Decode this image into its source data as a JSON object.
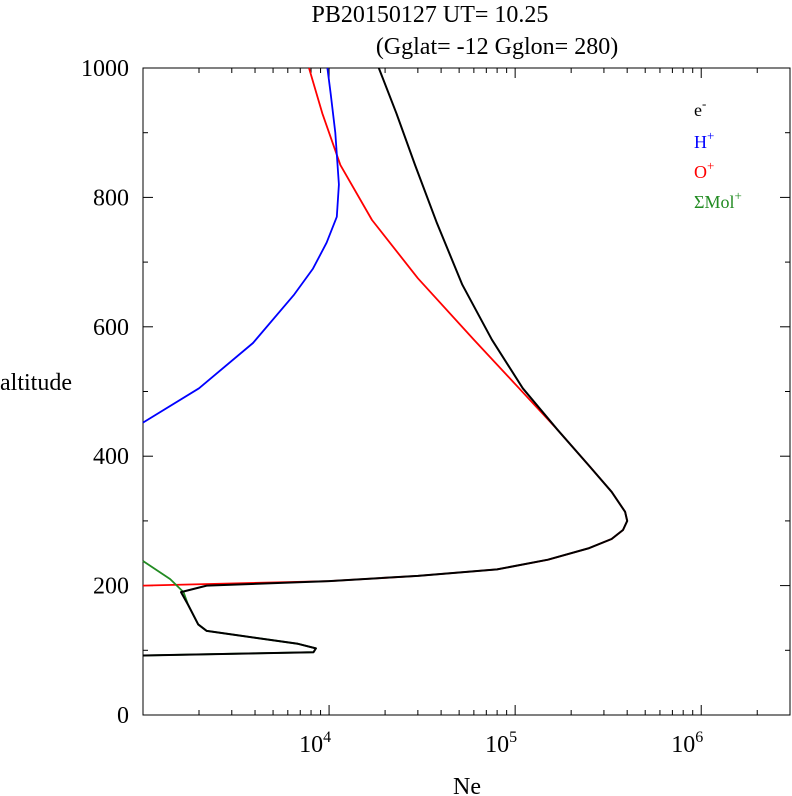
{
  "chart_data": {
    "type": "line",
    "title_line1": "PB20150127   UT=  10.25",
    "title_line2": "(Gglat= -12   Gglon=  280)",
    "xlabel": "Ne",
    "ylabel": "altitude",
    "x_scale": "log",
    "xlim": [
      1000,
      3000000
    ],
    "ylim": [
      0,
      1000
    ],
    "y_ticks": [
      0,
      200,
      400,
      600,
      800,
      1000
    ],
    "y_tick_labels": [
      "0",
      "200",
      "400",
      "600",
      "800",
      "1000"
    ],
    "x_ticks": [
      {
        "base": "10",
        "exp": "4",
        "value": 10000
      },
      {
        "base": "10",
        "exp": "5",
        "value": 100000
      },
      {
        "base": "10",
        "exp": "6",
        "value": 1000000
      }
    ],
    "grid": false,
    "legend_position": "top-right",
    "series": [
      {
        "name": "e",
        "name_sup": "-",
        "color": "#000000",
        "points": [
          [
            1000,
            92
          ],
          [
            8250,
            97
          ],
          [
            8500,
            103
          ],
          [
            6800,
            110
          ],
          [
            2200,
            130
          ],
          [
            1980,
            140
          ],
          [
            1750,
            170
          ],
          [
            1600,
            190
          ],
          [
            2200,
            200
          ],
          [
            10000,
            207
          ],
          [
            30000,
            215
          ],
          [
            80000,
            225
          ],
          [
            150000,
            240
          ],
          [
            250000,
            258
          ],
          [
            330000,
            272
          ],
          [
            380000,
            286
          ],
          [
            400000,
            300
          ],
          [
            390000,
            314
          ],
          [
            330000,
            345
          ],
          [
            250000,
            385
          ],
          [
            170000,
            440
          ],
          [
            110000,
            505
          ],
          [
            75000,
            580
          ],
          [
            52000,
            665
          ],
          [
            38000,
            760
          ],
          [
            29000,
            850
          ],
          [
            23000,
            930
          ],
          [
            18500,
            1000
          ]
        ]
      },
      {
        "name": "H",
        "name_sup": "+",
        "color": "#0000ff",
        "points": [
          [
            1000,
            452
          ],
          [
            2000,
            505
          ],
          [
            3900,
            575
          ],
          [
            6500,
            650
          ],
          [
            8200,
            690
          ],
          [
            9700,
            730
          ],
          [
            11000,
            770
          ],
          [
            11300,
            820
          ],
          [
            10800,
            900
          ],
          [
            10200,
            960
          ],
          [
            9800,
            1000
          ]
        ]
      },
      {
        "name": "O",
        "name_sup": "+",
        "color": "#ff0000",
        "points": [
          [
            1000,
            200
          ],
          [
            10000,
            207
          ],
          [
            30000,
            215
          ],
          [
            80000,
            225
          ],
          [
            150000,
            240
          ],
          [
            250000,
            258
          ],
          [
            330000,
            272
          ],
          [
            380000,
            286
          ],
          [
            400000,
            300
          ],
          [
            390000,
            314
          ],
          [
            330000,
            345
          ],
          [
            250000,
            385
          ],
          [
            170000,
            440
          ],
          [
            105000,
            505
          ],
          [
            60000,
            580
          ],
          [
            30000,
            675
          ],
          [
            17000,
            765
          ],
          [
            11500,
            850
          ],
          [
            9200,
            930
          ],
          [
            7800,
            1000
          ]
        ]
      },
      {
        "name": "ΣMol",
        "name_sup": "+",
        "color": "#228b22",
        "points": [
          [
            1000,
            238
          ],
          [
            1400,
            210
          ],
          [
            1650,
            190
          ],
          [
            1750,
            170
          ],
          [
            1980,
            140
          ],
          [
            2200,
            130
          ],
          [
            6800,
            110
          ],
          [
            8500,
            103
          ],
          [
            8250,
            97
          ],
          [
            1000,
            92
          ]
        ]
      }
    ]
  }
}
